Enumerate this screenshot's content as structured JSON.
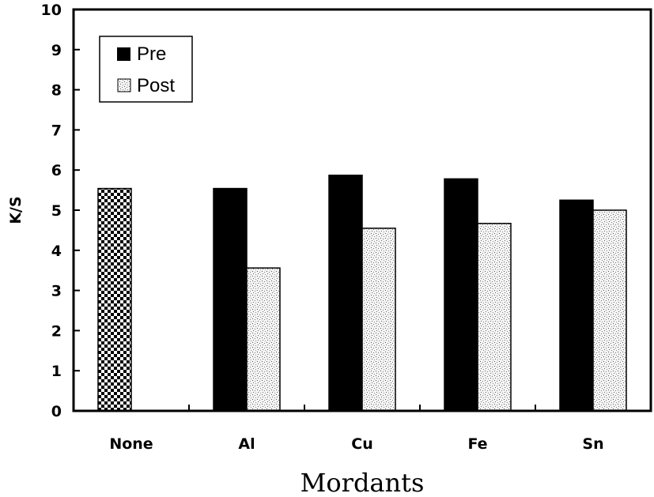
{
  "chart_data": {
    "type": "bar",
    "title": "",
    "xlabel": "Mordants",
    "ylabel": "K/S",
    "ylim": [
      0,
      10
    ],
    "yticks": [
      "0",
      "1",
      "2",
      "3",
      "4",
      "5",
      "6",
      "7",
      "8",
      "9",
      "10"
    ],
    "categories": [
      "None",
      "Al",
      "Cu",
      "Fe",
      "Sn"
    ],
    "series": [
      {
        "name": "Pre",
        "values": [
          null,
          5.54,
          5.87,
          5.78,
          5.25
        ],
        "color": "#000000"
      },
      {
        "name": "Post",
        "values": [
          null,
          3.56,
          4.55,
          4.67,
          5.0
        ],
        "color": "#dddddd"
      }
    ],
    "control": {
      "category": "None",
      "value": 5.54,
      "pattern": "checkerboard"
    },
    "legend": {
      "placement": "top-left",
      "entries": [
        "Pre",
        "Post"
      ]
    },
    "grid": false
  }
}
